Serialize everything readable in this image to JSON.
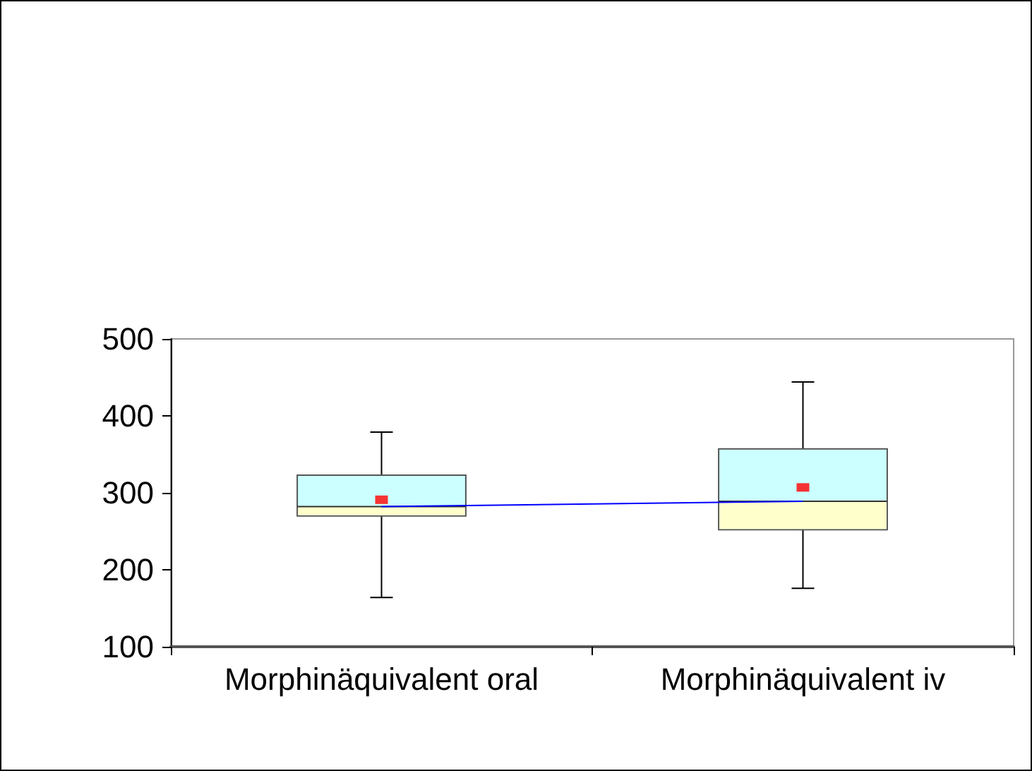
{
  "chart_data": {
    "type": "box",
    "categories": [
      "Morphinäquivalent oral",
      "Morphinäquivalent iv"
    ],
    "ylim": [
      100,
      500
    ],
    "yticks": [
      100,
      200,
      300,
      400,
      500
    ],
    "grid": false,
    "series": [
      {
        "color": "#ccffff",
        "boxes": [
          {
            "low": 164,
            "q1": 270,
            "median": 282,
            "q3": 323,
            "high": 379
          },
          {
            "low": 176,
            "q1": 252,
            "median": 289,
            "q3": 357,
            "high": 444
          }
        ]
      },
      {
        "type": "line",
        "color": "#0000ff",
        "marker": "none",
        "values": [
          282,
          289
        ]
      },
      {
        "type": "scatter",
        "color": "#ff0000",
        "marker": "square",
        "x": [
          "Morphinäquivalent oral",
          "Morphinäquivalent iv"
        ],
        "values": [
          291,
          307
        ]
      }
    ]
  }
}
